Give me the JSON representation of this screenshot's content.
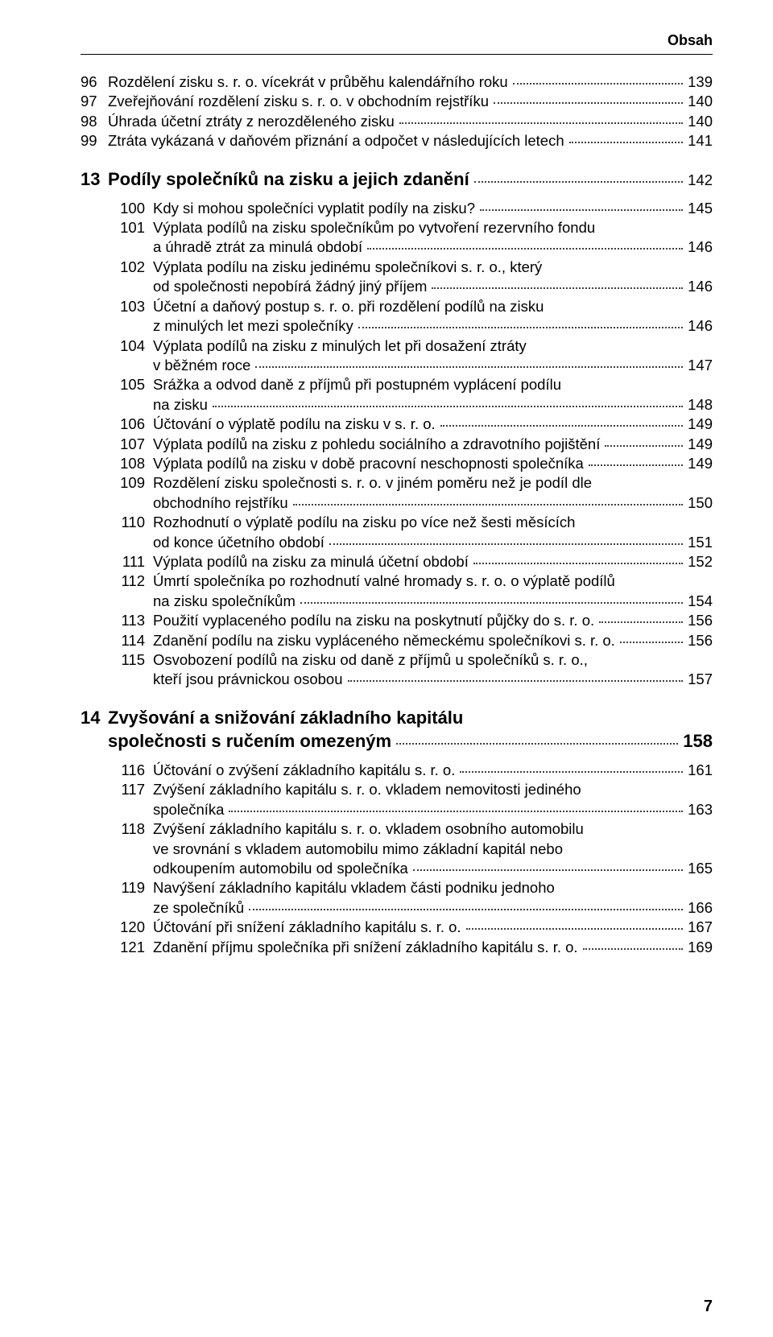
{
  "running_head": "Obsah",
  "page_number": "7",
  "toc": [
    {
      "type": "item",
      "num": "96",
      "label": "Rozdělení zisku s. r. o. vícekrát v průběhu kalendářního roku",
      "page": "139"
    },
    {
      "type": "item",
      "num": "97",
      "label": "Zveřejňování rozdělení zisku s. r. o. v obchodním rejstříku",
      "page": "140"
    },
    {
      "type": "item",
      "num": "98",
      "label": "Úhrada účetní ztráty z nerozděleného zisku",
      "page": "140"
    },
    {
      "type": "item",
      "num": "99",
      "label": "Ztráta vykázaná v daňovém přiznání a odpočet v následujících letech",
      "page": "141"
    },
    {
      "type": "chapter",
      "num": "13",
      "label": "Podíly společníků na zisku a jejich zdanění",
      "page": "142"
    },
    {
      "type": "sub",
      "num": "100",
      "label": "Kdy si mohou společníci vyplatit podíly na zisku?",
      "page": "145"
    },
    {
      "type": "sub",
      "num": "101",
      "label": "Výplata podílů na zisku společníkům po vytvoření rezervního fondu",
      "cont": "a úhradě ztrát za minulá období",
      "page": "146"
    },
    {
      "type": "sub",
      "num": "102",
      "label": "Výplata podílu na zisku jedinému společníkovi s. r. o., který",
      "cont": "od společnosti nepobírá žádný jiný příjem",
      "page": "146"
    },
    {
      "type": "sub",
      "num": "103",
      "label": "Účetní a daňový postup s. r. o. při rozdělení podílů na zisku",
      "cont": "z minulých let mezi společníky",
      "page": "146"
    },
    {
      "type": "sub",
      "num": "104",
      "label": "Výplata podílů na zisku z minulých let při dosažení ztráty",
      "cont": "v běžném roce",
      "page": "147"
    },
    {
      "type": "sub",
      "num": "105",
      "label": "Srážka a odvod daně z příjmů při postupném vyplácení podílu",
      "cont": "na zisku",
      "page": "148"
    },
    {
      "type": "sub",
      "num": "106",
      "label": "Účtování o výplatě podílu na zisku v s. r. o.",
      "page": "149"
    },
    {
      "type": "sub",
      "num": "107",
      "label": "Výplata podílů na zisku z pohledu sociálního a zdravotního pojištění",
      "page": "149"
    },
    {
      "type": "sub",
      "num": "108",
      "label": "Výplata podílů na zisku v době pracovní neschopnosti společníka",
      "page": "149"
    },
    {
      "type": "sub",
      "num": "109",
      "label": "Rozdělení zisku společnosti s. r. o. v jiném poměru než je podíl dle",
      "cont": "obchodního rejstříku",
      "page": "150"
    },
    {
      "type": "sub",
      "num": "110",
      "label": "Rozhodnutí o výplatě podílu na zisku po více než šesti měsících",
      "cont": "od konce účetního období",
      "page": "151"
    },
    {
      "type": "sub",
      "num": "111",
      "label": "Výplata podílů na zisku za minulá účetní období",
      "page": "152"
    },
    {
      "type": "sub",
      "num": "112",
      "label": "Úmrtí společníka po rozhodnutí valné hromady s. r. o. o výplatě podílů",
      "cont": "na zisku společníkům",
      "page": "154"
    },
    {
      "type": "sub",
      "num": "113",
      "label": "Použití vyplaceného podílu na zisku na poskytnutí půjčky do s. r. o.",
      "page": "156"
    },
    {
      "type": "sub",
      "num": "114",
      "label": "Zdanění podílu na zisku vypláceného německému společníkovi s. r. o.",
      "page": "156"
    },
    {
      "type": "sub",
      "num": "115",
      "label": "Osvobození podílů na zisku od daně z příjmů u společníků s. r. o.,",
      "cont": "kteří jsou právnickou osobou",
      "page": "157"
    },
    {
      "type": "chapter",
      "num": "14",
      "label": "Zvyšování a snižování základního kapitálu",
      "cont": "společnosti s ručením omezeným",
      "page": "158"
    },
    {
      "type": "sub",
      "num": "116",
      "label": "Účtování o zvýšení základního kapitálu s. r. o.",
      "page": "161"
    },
    {
      "type": "sub",
      "num": "117",
      "label": "Zvýšení základního kapitálu s. r. o. vkladem nemovitosti jediného",
      "cont": "společníka",
      "page": "163"
    },
    {
      "type": "sub",
      "num": "118",
      "label": "Zvýšení základního kapitálu s. r. o. vkladem osobního automobilu",
      "cont": "ve srovnání s vkladem automobilu mimo základní kapitál nebo",
      "cont2": "odkoupením automobilu od společníka",
      "page": "165"
    },
    {
      "type": "sub",
      "num": "119",
      "label": "Navýšení základního kapitálu vkladem části podniku jednoho",
      "cont": "ze společníků",
      "page": "166"
    },
    {
      "type": "sub",
      "num": "120",
      "label": "Účtování při snížení základního kapitálu s. r. o.",
      "page": "167"
    },
    {
      "type": "sub",
      "num": "121",
      "label": "Zdanění příjmu společníka při snížení základního kapitálu s. r. o.",
      "page": "169"
    }
  ]
}
